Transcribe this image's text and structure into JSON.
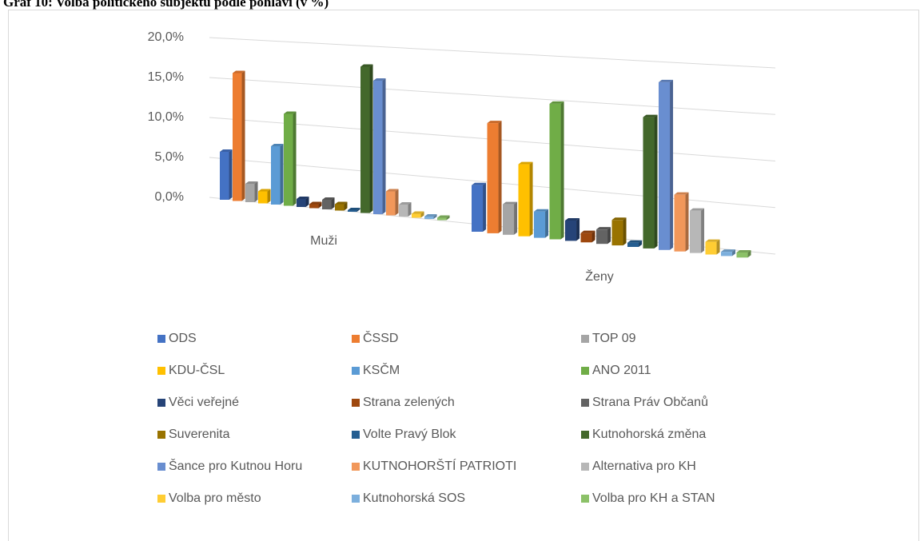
{
  "chart_data": {
    "type": "bar3d",
    "title": "Graf 10: Volba politického subjektu podle pohlaví (v %)",
    "categories": [
      "Muži",
      "Ženy"
    ],
    "ylim": [
      0,
      20
    ],
    "yticks": [
      {
        "value": 0,
        "label": "0,0%"
      },
      {
        "value": 5,
        "label": "5,0%"
      },
      {
        "value": 10,
        "label": "10,0%"
      },
      {
        "value": 15,
        "label": "15,0%"
      },
      {
        "value": 20,
        "label": "20,0%"
      }
    ],
    "grid": true,
    "legend": "bottom",
    "series": [
      {
        "name": "ODS",
        "color": "#4472c4",
        "values": [
          6.0,
          5.5
        ]
      },
      {
        "name": "ČSSD",
        "color": "#ed7d31",
        "values": [
          16.0,
          13.0
        ]
      },
      {
        "name": "TOP 09",
        "color": "#a5a5a5",
        "values": [
          2.3,
          3.6
        ]
      },
      {
        "name": "KDU-ČSL",
        "color": "#ffc000",
        "values": [
          1.5,
          8.5
        ]
      },
      {
        "name": "KSČM",
        "color": "#5b9bd5",
        "values": [
          7.3,
          3.1
        ]
      },
      {
        "name": "ANO 2011",
        "color": "#70ad47",
        "values": [
          11.5,
          16.0
        ]
      },
      {
        "name": "Věci veřejné",
        "color": "#264478",
        "values": [
          1.0,
          2.4
        ]
      },
      {
        "name": "Strana zelených",
        "color": "#9e480e",
        "values": [
          0.5,
          1.1
        ]
      },
      {
        "name": "Strana Práv Občanů",
        "color": "#636363",
        "values": [
          1.2,
          1.7
        ]
      },
      {
        "name": "Suverenita",
        "color": "#997300",
        "values": [
          0.8,
          3.0
        ]
      },
      {
        "name": "Volte Pravý Blok",
        "color": "#255e91",
        "values": [
          0.2,
          0.5
        ]
      },
      {
        "name": "Kutnohorská změna",
        "color": "#43682b",
        "values": [
          18.3,
          15.5
        ]
      },
      {
        "name": "Šance pro Kutnou Horu",
        "color": "#698ed0",
        "values": [
          16.7,
          19.8
        ]
      },
      {
        "name": "KUTNOHORŠTÍ PATRIOTI",
        "color": "#f1975a",
        "values": [
          3.0,
          6.7
        ]
      },
      {
        "name": "Alternativa pro KH",
        "color": "#b7b7b7",
        "values": [
          1.5,
          5.0
        ]
      },
      {
        "name": "Volba pro město",
        "color": "#ffcd33",
        "values": [
          0.5,
          1.5
        ]
      },
      {
        "name": "Kutnohorská SOS",
        "color": "#7cafdd",
        "values": [
          0.3,
          0.5
        ]
      },
      {
        "name": "Volba pro KH a STAN",
        "color": "#8cc168",
        "values": [
          0.3,
          0.6
        ]
      }
    ]
  }
}
